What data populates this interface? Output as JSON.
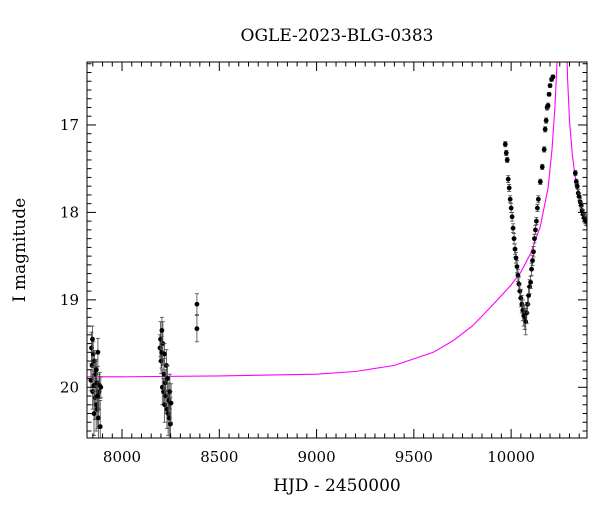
{
  "chart_data": {
    "type": "scatter",
    "title": "OGLE-2023-BLG-0383",
    "xlabel": "HJD - 2450000",
    "ylabel": "I magnitude",
    "xlim": [
      7820,
      10390
    ],
    "ylim": [
      20.58,
      16.28
    ],
    "y_inverted": true,
    "x_ticks": [
      8000,
      8500,
      9000,
      9500,
      10000
    ],
    "y_ticks": [
      17,
      18,
      19,
      20
    ],
    "grid": false,
    "legend": "none",
    "series": [
      {
        "kind": "observations",
        "color": "#000000",
        "points": [
          [
            7840,
            19.92,
            0.12
          ],
          [
            7843,
            19.55,
            0.18
          ],
          [
            7846,
            19.75,
            0.15
          ],
          [
            7849,
            20.05,
            0.2
          ],
          [
            7852,
            19.62,
            0.14
          ],
          [
            7855,
            19.98,
            0.22
          ],
          [
            7858,
            19.7,
            0.12
          ],
          [
            7861,
            20.12,
            0.25
          ],
          [
            7864,
            19.85,
            0.15
          ],
          [
            7867,
            20.2,
            0.3
          ],
          [
            7870,
            19.95,
            0.18
          ],
          [
            7873,
            20.25,
            0.22
          ],
          [
            7876,
            19.6,
            0.16
          ],
          [
            7879,
            20.35,
            0.28
          ],
          [
            7882,
            20.05,
            0.2
          ],
          [
            7885,
            19.98,
            0.15
          ],
          [
            7888,
            20.45,
            0.3
          ],
          [
            7891,
            20.0,
            0.12
          ],
          [
            7848,
            19.45,
            0.15
          ],
          [
            7856,
            20.3,
            0.25
          ],
          [
            7868,
            19.8,
            0.12
          ],
          [
            7874,
            20.1,
            0.18
          ],
          [
            8195,
            19.55,
            0.15
          ],
          [
            8198,
            19.45,
            0.2
          ],
          [
            8201,
            19.7,
            0.14
          ],
          [
            8204,
            19.6,
            0.18
          ],
          [
            8207,
            20.0,
            0.2
          ],
          [
            8210,
            19.5,
            0.25
          ],
          [
            8213,
            20.05,
            0.15
          ],
          [
            8216,
            19.85,
            0.18
          ],
          [
            8219,
            20.2,
            0.2
          ],
          [
            8222,
            19.95,
            0.15
          ],
          [
            8225,
            20.1,
            0.2
          ],
          [
            8228,
            19.75,
            0.18
          ],
          [
            8231,
            20.25,
            0.22
          ],
          [
            8234,
            19.9,
            0.15
          ],
          [
            8237,
            20.3,
            0.25
          ],
          [
            8240,
            20.15,
            0.2
          ],
          [
            8243,
            20.35,
            0.28
          ],
          [
            8246,
            20.05,
            0.2
          ],
          [
            8249,
            20.42,
            0.3
          ],
          [
            8252,
            20.18,
            0.22
          ],
          [
            8205,
            19.35,
            0.15
          ],
          [
            8218,
            19.62,
            0.12
          ],
          [
            8385,
            19.05,
            0.12
          ],
          [
            8385,
            19.33,
            0.15
          ],
          [
            9970,
            17.22,
            0.03
          ],
          [
            9975,
            17.32,
            0.03
          ],
          [
            9980,
            17.4,
            0.03
          ],
          [
            9985,
            17.62,
            0.04
          ],
          [
            9990,
            17.72,
            0.04
          ],
          [
            9995,
            17.85,
            0.04
          ],
          [
            10000,
            17.95,
            0.05
          ],
          [
            10005,
            18.05,
            0.05
          ],
          [
            10010,
            18.18,
            0.05
          ],
          [
            10015,
            18.3,
            0.06
          ],
          [
            10020,
            18.42,
            0.06
          ],
          [
            10025,
            18.52,
            0.06
          ],
          [
            10030,
            18.62,
            0.07
          ],
          [
            10035,
            18.72,
            0.07
          ],
          [
            10040,
            18.82,
            0.08
          ],
          [
            10045,
            18.9,
            0.08
          ],
          [
            10050,
            18.98,
            0.1
          ],
          [
            10055,
            19.05,
            0.1
          ],
          [
            10060,
            19.12,
            0.12
          ],
          [
            10065,
            19.18,
            0.12
          ],
          [
            10070,
            19.2,
            0.14
          ],
          [
            10075,
            19.25,
            0.15
          ],
          [
            10080,
            19.15,
            0.12
          ],
          [
            10085,
            19.05,
            0.1
          ],
          [
            10090,
            18.95,
            0.1
          ],
          [
            10095,
            18.85,
            0.08
          ],
          [
            10100,
            18.8,
            0.07
          ],
          [
            10105,
            18.65,
            0.07
          ],
          [
            10110,
            18.55,
            0.06
          ],
          [
            10115,
            18.45,
            0.06
          ],
          [
            10120,
            18.3,
            0.05
          ],
          [
            10125,
            18.2,
            0.05
          ],
          [
            10130,
            18.1,
            0.04
          ],
          [
            10135,
            17.95,
            0.04
          ],
          [
            10140,
            17.85,
            0.04
          ],
          [
            10150,
            17.65,
            0.03
          ],
          [
            10160,
            17.48,
            0.03
          ],
          [
            10170,
            17.28,
            0.03
          ],
          [
            10175,
            17.05,
            0.03
          ],
          [
            10180,
            16.95,
            0.03
          ],
          [
            10185,
            16.8,
            0.03
          ],
          [
            10190,
            16.78,
            0.03
          ],
          [
            10195,
            16.65,
            0.02
          ],
          [
            10200,
            16.55,
            0.02
          ],
          [
            10208,
            16.48,
            0.02
          ],
          [
            10215,
            16.45,
            0.02
          ],
          [
            10330,
            17.55,
            0.03
          ],
          [
            10335,
            17.65,
            0.03
          ],
          [
            10340,
            17.7,
            0.03
          ],
          [
            10345,
            17.78,
            0.04
          ],
          [
            10350,
            17.82,
            0.04
          ],
          [
            10355,
            17.88,
            0.04
          ],
          [
            10360,
            17.92,
            0.04
          ],
          [
            10365,
            17.98,
            0.05
          ],
          [
            10370,
            18.02,
            0.05
          ],
          [
            10375,
            18.06,
            0.05
          ],
          [
            10380,
            18.08,
            0.05
          ],
          [
            10385,
            18.1,
            0.05
          ]
        ]
      },
      {
        "kind": "model",
        "color": "#ff00ff",
        "points": [
          [
            7820,
            19.88
          ],
          [
            8000,
            19.88
          ],
          [
            8500,
            19.87
          ],
          [
            9000,
            19.85
          ],
          [
            9200,
            19.82
          ],
          [
            9400,
            19.75
          ],
          [
            9600,
            19.6
          ],
          [
            9700,
            19.47
          ],
          [
            9800,
            19.3
          ],
          [
            9900,
            19.07
          ],
          [
            10000,
            18.83
          ],
          [
            10050,
            18.68
          ],
          [
            10100,
            18.47
          ],
          [
            10150,
            18.16
          ],
          [
            10190,
            17.72
          ],
          [
            10210,
            17.28
          ],
          [
            10225,
            16.8
          ],
          [
            10235,
            16.35
          ],
          [
            10240,
            16.05
          ],
          [
            10285,
            16.05
          ],
          [
            10290,
            16.45
          ],
          [
            10300,
            16.95
          ],
          [
            10315,
            17.35
          ],
          [
            10330,
            17.6
          ],
          [
            10350,
            17.85
          ],
          [
            10370,
            18.02
          ],
          [
            10390,
            18.18
          ]
        ]
      }
    ]
  }
}
